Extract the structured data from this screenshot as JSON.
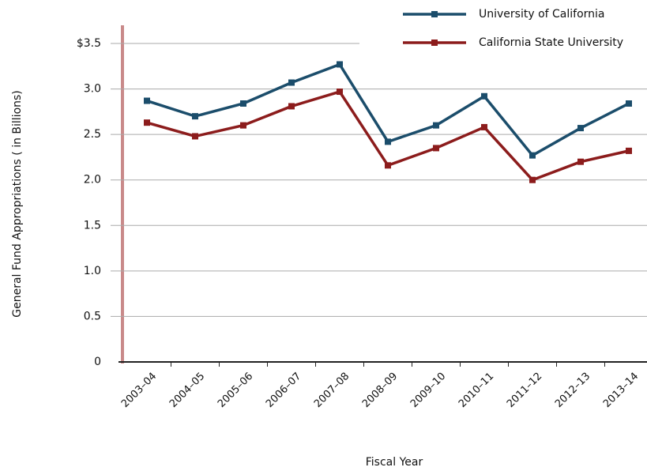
{
  "chart_data": {
    "type": "line",
    "y_label": "General Fund Appropriations ( in Billions)",
    "x_label": "Fiscal Year",
    "categories": [
      "2003–04",
      "2004–05",
      "2005–06",
      "2006–07",
      "2007–08",
      "2008–09",
      "2009–10",
      "2010–11",
      "2011–12",
      "2012–13",
      "2013–14"
    ],
    "series": [
      {
        "name": "University of California",
        "color": "#1b4d6b",
        "values": [
          2.87,
          2.7,
          2.84,
          3.07,
          3.27,
          2.42,
          2.6,
          2.92,
          2.27,
          2.57,
          2.84
        ]
      },
      {
        "name": "California State University",
        "color": "#8c1c1c",
        "values": [
          2.63,
          2.48,
          2.6,
          2.81,
          2.97,
          2.16,
          2.35,
          2.58,
          2.0,
          2.2,
          2.32
        ]
      }
    ],
    "ylim": [
      0,
      3.5
    ],
    "yticks": [
      0,
      {
        "value": 0.5,
        "label": "0.5"
      },
      {
        "value": 1,
        "label": "1.0"
      },
      {
        "value": 1.5,
        "label": "1.5"
      },
      {
        "value": 2,
        "label": "2.0"
      },
      {
        "value": 2.5,
        "label": "2.5"
      },
      {
        "value": 3,
        "label": "3.0"
      },
      {
        "value": 3.5,
        "label": "$3.5"
      }
    ],
    "grid": true,
    "legend": "top-right"
  }
}
